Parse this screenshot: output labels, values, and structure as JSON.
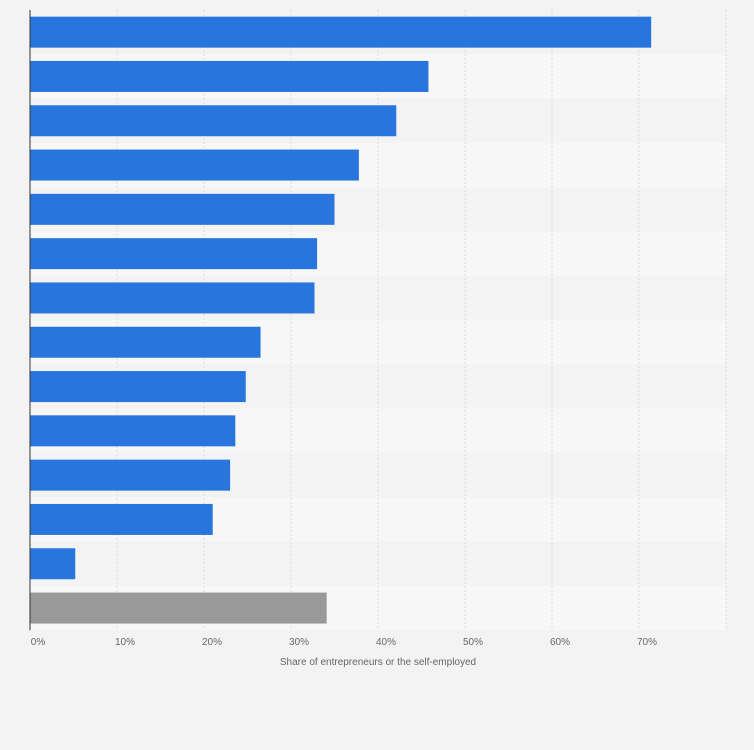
{
  "chart_data": {
    "type": "bar",
    "orientation": "horizontal",
    "title": "",
    "xlabel": "Share of entrepreneurs or the self-employed",
    "ylabel": "",
    "xlim": [
      0,
      80
    ],
    "x_ticks": [
      0,
      10,
      20,
      30,
      40,
      50,
      60,
      70
    ],
    "x_tick_labels": [
      "0%",
      "10%",
      "20%",
      "30%",
      "40%",
      "50%",
      "60%",
      "70%"
    ],
    "grid": true,
    "category_labels_visible": false,
    "values": [
      71.4,
      45.8,
      42.1,
      37.8,
      35.0,
      33.0,
      32.7,
      26.5,
      24.8,
      23.6,
      23.0,
      21.0,
      5.2,
      34.1
    ],
    "colors": [
      "#2876dd",
      "#2876dd",
      "#2876dd",
      "#2876dd",
      "#2876dd",
      "#2876dd",
      "#2876dd",
      "#2876dd",
      "#2876dd",
      "#2876dd",
      "#2876dd",
      "#2876dd",
      "#2876dd",
      "#999999"
    ]
  },
  "colors": {
    "background": "#f3f3f3",
    "band_light": "#f7f7f7",
    "band_dark": "#f3f3f3",
    "grid": "#dcdcdc",
    "axis": "#333333",
    "bar": "#2876dd",
    "bar_highlight": "#999999"
  }
}
